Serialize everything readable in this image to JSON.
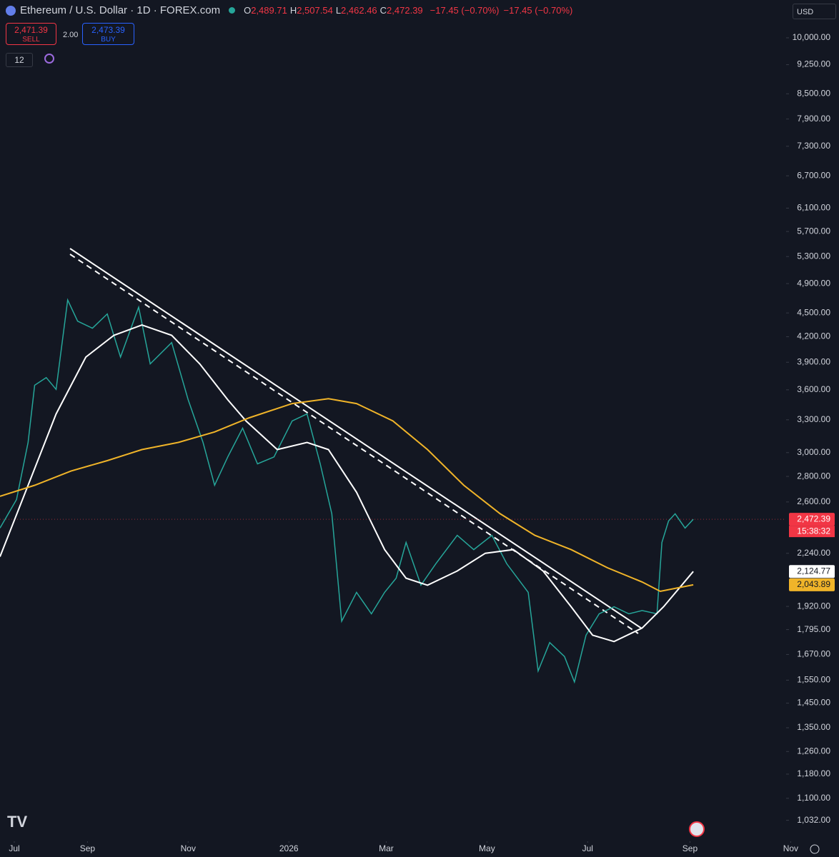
{
  "header": {
    "symbol": "Ethereum / U.S. Dollar · 1D · FOREX.com",
    "ohlc": [
      {
        "key": "O",
        "value": "2,489.71"
      },
      {
        "key": "H",
        "value": "2,507.54"
      },
      {
        "key": "L",
        "value": "2,462.46"
      },
      {
        "key": "C",
        "value": "2,472.39"
      }
    ],
    "change": "−17.45 (−0.70%)",
    "change_2": "−17.45 (−0.70%)"
  },
  "trade": {
    "sell_price": "2,471.39",
    "sell_label": "SELL",
    "spread": "2.00",
    "buy_price": "2,473.39",
    "buy_label": "BUY"
  },
  "indicators_count": "12",
  "currency": "USD",
  "chart_data": {
    "type": "line",
    "log_scale": true,
    "xlim": [
      9,
      490
    ],
    "xticks": [
      {
        "value": 0,
        "label": "Jul"
      },
      {
        "value": 62,
        "label": "Sep"
      },
      {
        "value": 123,
        "label": "Nov"
      },
      {
        "value": 184,
        "label": "2026"
      },
      {
        "value": 243,
        "label": "Mar"
      },
      {
        "value": 304,
        "label": "May"
      },
      {
        "value": 365,
        "label": "Jul"
      },
      {
        "value": 427,
        "label": "Sep"
      },
      {
        "value": 488,
        "label": "Nov"
      }
    ],
    "ylim": [
      967,
      11160
    ],
    "yticks": [
      {
        "value": 10000,
        "label": "10,000.00"
      },
      {
        "value": 9250,
        "label": "9,250.00"
      },
      {
        "value": 8500,
        "label": "8,500.00"
      },
      {
        "value": 7900,
        "label": "7,900.00"
      },
      {
        "value": 7300,
        "label": "7,300.00"
      },
      {
        "value": 6700,
        "label": "6,700.00"
      },
      {
        "value": 6100,
        "label": "6,100.00"
      },
      {
        "value": 5700,
        "label": "5,700.00"
      },
      {
        "value": 5300,
        "label": "5,300.00"
      },
      {
        "value": 4900,
        "label": "4,900.00"
      },
      {
        "value": 4500,
        "label": "4,500.00"
      },
      {
        "value": 4200,
        "label": "4,200.00"
      },
      {
        "value": 3900,
        "label": "3,900.00"
      },
      {
        "value": 3600,
        "label": "3,600.00"
      },
      {
        "value": 3300,
        "label": "3,300.00"
      },
      {
        "value": 3000,
        "label": "3,000.00"
      },
      {
        "value": 2800,
        "label": "2,800.00"
      },
      {
        "value": 2600,
        "label": "2,600.00"
      },
      {
        "value": 2240,
        "label": "2,240.00"
      },
      {
        "value": 1920,
        "label": "1,920.00"
      },
      {
        "value": 1795,
        "label": "1,795.00"
      },
      {
        "value": 1670,
        "label": "1,670.00"
      },
      {
        "value": 1550,
        "label": "1,550.00"
      },
      {
        "value": 1450,
        "label": "1,450.00"
      },
      {
        "value": 1350,
        "label": "1,350.00"
      },
      {
        "value": 1260,
        "label": "1,260.00"
      },
      {
        "value": 1180,
        "label": "1,180.00"
      },
      {
        "value": 1100,
        "label": "1,100.00"
      },
      {
        "value": 1032,
        "label": "1,032.00"
      }
    ],
    "series": [
      {
        "color": "#26a69a",
        "x": [
          9,
          19,
          26,
          30,
          37,
          43,
          50,
          56,
          65,
          74,
          82,
          93,
          100,
          113,
          123,
          132,
          139,
          147,
          156,
          165,
          175,
          186,
          195,
          203,
          210,
          216,
          225,
          234,
          242,
          249,
          255,
          264,
          273,
          286,
          296,
          307,
          316,
          329,
          335,
          342,
          351,
          357,
          364,
          372,
          381,
          390,
          398,
          407,
          410,
          414,
          418,
          424,
          429
        ],
        "values": [
          2410,
          2618,
          3090,
          3648,
          3730,
          3605,
          4673,
          4394,
          4305,
          4487,
          3959,
          4576,
          3882,
          4129,
          3497,
          3090,
          2729,
          2963,
          3221,
          2904,
          2963,
          3289,
          3357,
          2904,
          2512,
          1839,
          2000,
          1879,
          2000,
          2084,
          2312,
          2042,
          2173,
          2360,
          2264,
          2360,
          2173,
          2000,
          1592,
          1729,
          1660,
          1542,
          1766,
          1879,
          1918,
          1879,
          1897,
          1879,
          2312,
          2460,
          2512,
          2410,
          2472.39
        ]
      },
      {
        "color": "#ffffff",
        "x": [
          9,
          26,
          43,
          61,
          78,
          95,
          113,
          130,
          147,
          158,
          177,
          195,
          208,
          225,
          242,
          255,
          268,
          286,
          303,
          320,
          338,
          355,
          368,
          381,
          398,
          411,
          429
        ],
        "values": [
          2218,
          2729,
          3357,
          3959,
          4217,
          4345,
          4217,
          3882,
          3497,
          3289,
          3027,
          3090,
          3027,
          2674,
          2264,
          2084,
          2042,
          2128,
          2240,
          2264,
          2128,
          1918,
          1766,
          1734,
          1803,
          1918,
          2124.77
        ]
      },
      {
        "color": "#f0b429",
        "x": [
          9,
          30,
          52,
          74,
          95,
          117,
          139,
          160,
          186,
          208,
          225,
          247,
          268,
          290,
          312,
          333,
          355,
          377,
          398,
          409,
          429
        ],
        "values": [
          2643,
          2729,
          2844,
          2931,
          3027,
          3090,
          3186,
          3319,
          3459,
          3508,
          3459,
          3289,
          3027,
          2729,
          2512,
          2360,
          2264,
          2148,
          2061,
          2006,
          2043.89
        ]
      }
    ],
    "price_tags": [
      {
        "value": 2472.39,
        "label": "2,472.39",
        "color": "#f23645"
      },
      {
        "value": 2124.77,
        "label": "2,124.77",
        "color": "#ffffff"
      },
      {
        "value": 2043.89,
        "label": "2,043.89",
        "color": "#f0b429"
      }
    ],
    "countdown": "15:38:32"
  }
}
